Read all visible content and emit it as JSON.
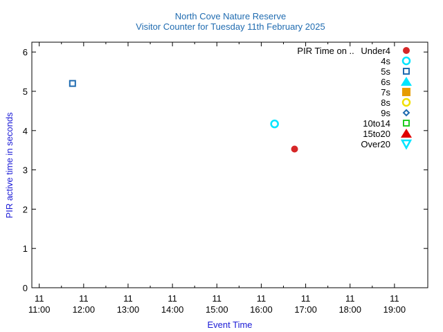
{
  "chart_data": {
    "type": "scatter",
    "title": "North Cove Nature Reserve",
    "subtitle": "Visitor Counter for Tuesday 11th February 2025",
    "xlabel": "Event Time",
    "ylabel": "PIR active time in seconds",
    "xlim": [
      "11 10:50",
      "11 19:45"
    ],
    "ylim": [
      0,
      6.25
    ],
    "x_ticks": [
      {
        "day": "11",
        "time": "11:00"
      },
      {
        "day": "11",
        "time": "12:00"
      },
      {
        "day": "11",
        "time": "13:00"
      },
      {
        "day": "11",
        "time": "14:00"
      },
      {
        "day": "11",
        "time": "15:00"
      },
      {
        "day": "11",
        "time": "16:00"
      },
      {
        "day": "11",
        "time": "17:00"
      },
      {
        "day": "11",
        "time": "18:00"
      },
      {
        "day": "11",
        "time": "19:00"
      }
    ],
    "y_ticks": [
      "0",
      "1",
      "2",
      "3",
      "4",
      "5",
      "6"
    ],
    "grid": false,
    "legend_title": "PIR Time on ..",
    "legend_position": "top-right",
    "series": [
      {
        "name": "Under4",
        "marker": "filled-circle",
        "color": "#d62728",
        "points": [
          {
            "x": "11 16:45",
            "y": 3.53
          }
        ]
      },
      {
        "name": "4s",
        "marker": "open-circle",
        "color": "#00e5ff",
        "points": [
          {
            "x": "11 16:18",
            "y": 4.17
          }
        ]
      },
      {
        "name": "5s",
        "marker": "open-square",
        "color": "#1f6bb0",
        "points": [
          {
            "x": "11 11:45",
            "y": 5.2
          }
        ]
      },
      {
        "name": "6s",
        "marker": "filled-triangle-up",
        "color": "#00e5ff",
        "points": []
      },
      {
        "name": "7s",
        "marker": "filled-square",
        "color": "#e69c00",
        "points": []
      },
      {
        "name": "8s",
        "marker": "open-circle",
        "color": "#f0e000",
        "points": []
      },
      {
        "name": "9s",
        "marker": "open-diamond",
        "color": "#1f6bb0",
        "points": []
      },
      {
        "name": "10to14",
        "marker": "open-square",
        "color": "#22cc22",
        "points": []
      },
      {
        "name": "15to20",
        "marker": "filled-triangle-up",
        "color": "#e00000",
        "points": []
      },
      {
        "name": "Over20",
        "marker": "open-triangle-down",
        "color": "#00e5ff",
        "points": []
      }
    ]
  }
}
